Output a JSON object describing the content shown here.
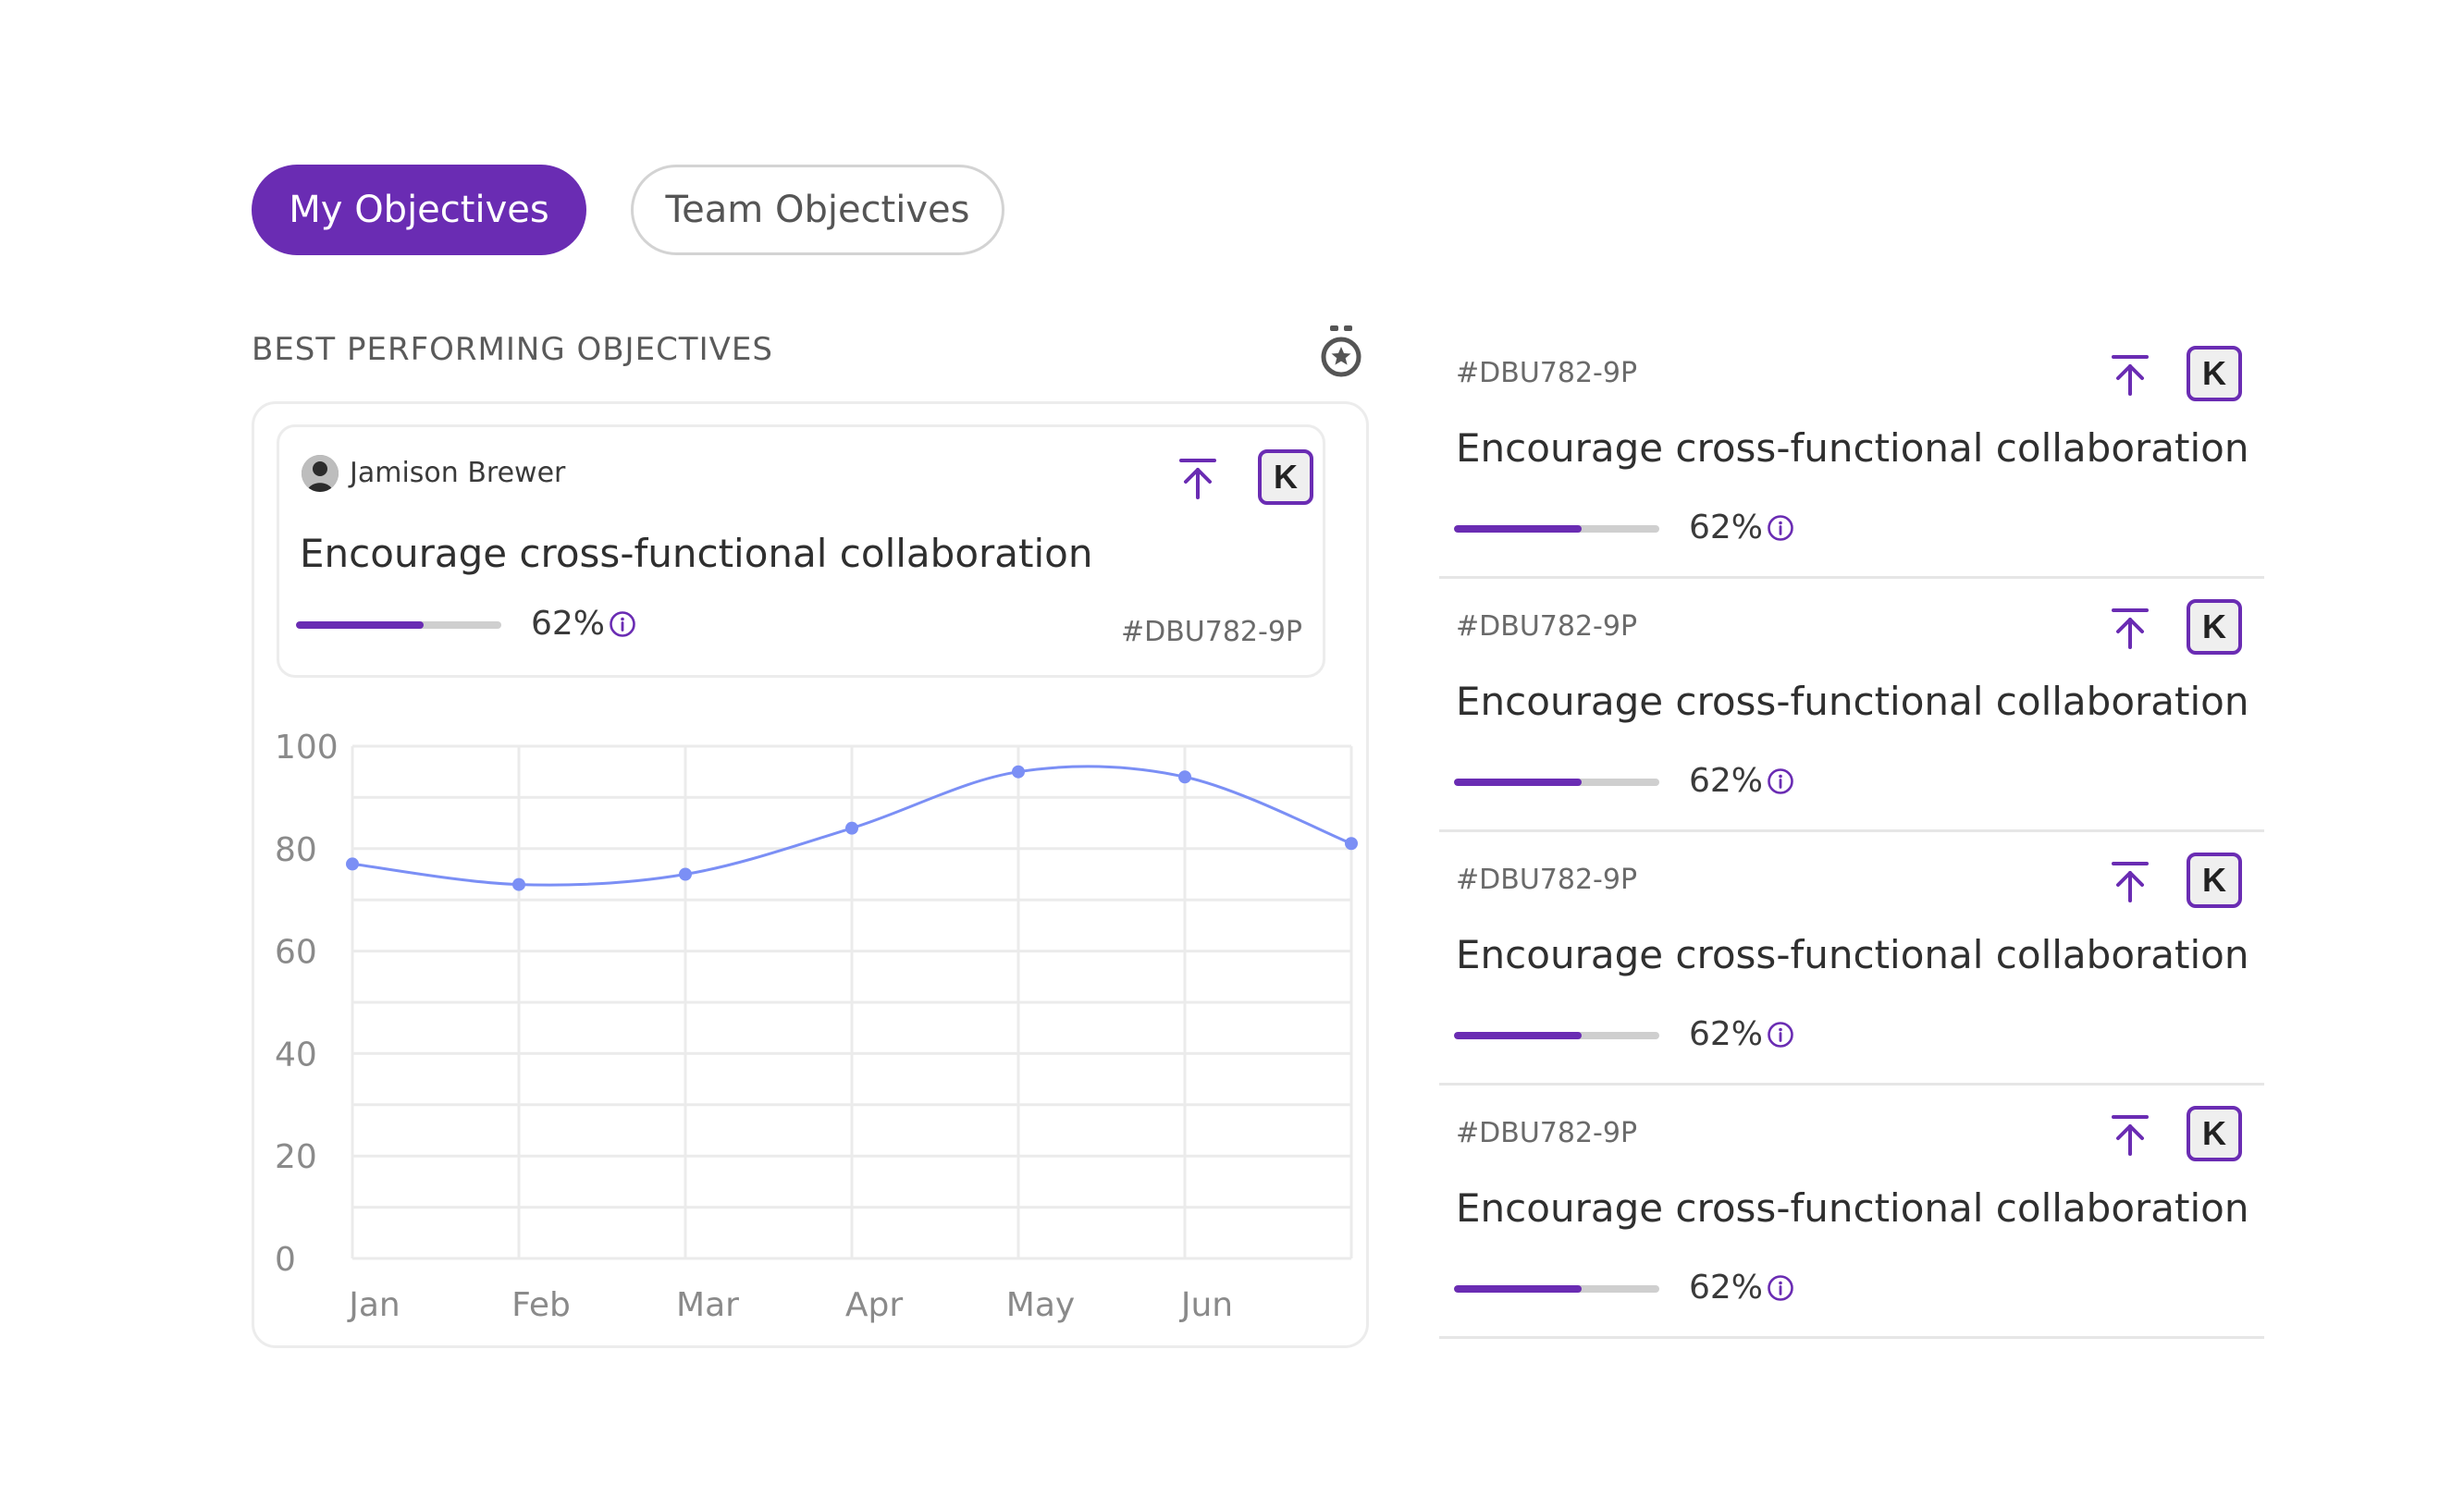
{
  "tabs": {
    "my_objectives": "My Objectives",
    "team_objectives": "Team Objectives"
  },
  "section": {
    "title": "BEST PERFORMING OBJECTIVES"
  },
  "featured": {
    "owner": "Jamison Brewer",
    "title": "Encourage cross-functional collaboration",
    "progress": 0.62,
    "progress_label": "62%",
    "id": "#DBU782-9P",
    "badge": "K"
  },
  "chart_data": {
    "type": "line",
    "categories": [
      "Jan",
      "Feb",
      "Mar",
      "Apr",
      "May",
      "Jun"
    ],
    "x": [
      0,
      1,
      2,
      3,
      4,
      5,
      6
    ],
    "series": [
      {
        "values": [
          77,
          73,
          75,
          84,
          95,
          94,
          81
        ]
      }
    ],
    "y_ticks": [
      "100",
      "80",
      "60",
      "40",
      "20",
      "0"
    ],
    "ylim": [
      0,
      100
    ],
    "grid": true,
    "color": "#7b8ff5",
    "title": "",
    "xlabel": "",
    "ylabel": ""
  },
  "objectives": [
    {
      "id": "#DBU782-9P",
      "title": "Encourage cross-functional collaboration",
      "progress": 0.62,
      "progress_label": "62%",
      "badge": "K"
    },
    {
      "id": "#DBU782-9P",
      "title": "Encourage cross-functional collaboration",
      "progress": 0.62,
      "progress_label": "62%",
      "badge": "K"
    },
    {
      "id": "#DBU782-9P",
      "title": "Encourage cross-functional collaboration",
      "progress": 0.62,
      "progress_label": "62%",
      "badge": "K"
    },
    {
      "id": "#DBU782-9P",
      "title": "Encourage cross-functional collaboration",
      "progress": 0.62,
      "progress_label": "62%",
      "badge": "K"
    }
  ],
  "colors": {
    "accent": "#6a2cb3",
    "line": "#7b8ff5",
    "track": "#cfcfcf"
  },
  "icons": {
    "upload": "arrow-up-to-line-icon",
    "info": "info-circle-icon",
    "medal": "medal-icon"
  }
}
